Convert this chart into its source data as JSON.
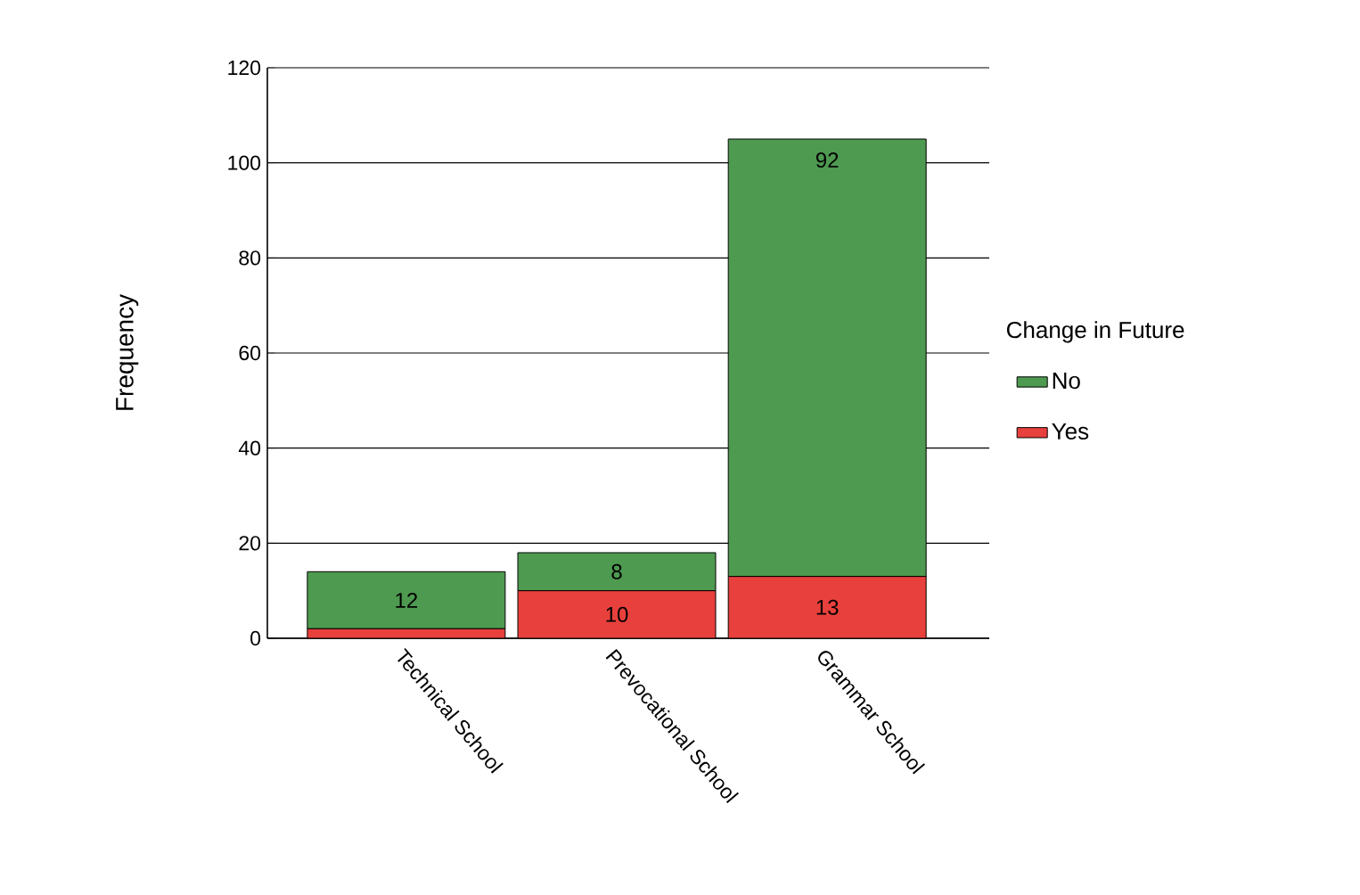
{
  "chart_data": {
    "type": "bar",
    "stacked": true,
    "ylabel": "Frequency",
    "legend_title": "Change in Future",
    "legend": "right",
    "grid": "y",
    "categories": [
      "Technical School",
      "Prevocational School",
      "Grammar School"
    ],
    "series": [
      {
        "name": "Yes",
        "color": "#e8403c",
        "values": [
          2,
          10,
          13
        ],
        "value_labels": [
          null,
          "10",
          "13"
        ]
      },
      {
        "name": "No",
        "color": "#4e9a50",
        "values": [
          12,
          8,
          92
        ],
        "value_labels": [
          "12",
          "8",
          "92"
        ]
      }
    ],
    "ylim": [
      0,
      120
    ],
    "yticks": [
      0,
      20,
      40,
      60,
      80,
      100,
      120
    ]
  }
}
